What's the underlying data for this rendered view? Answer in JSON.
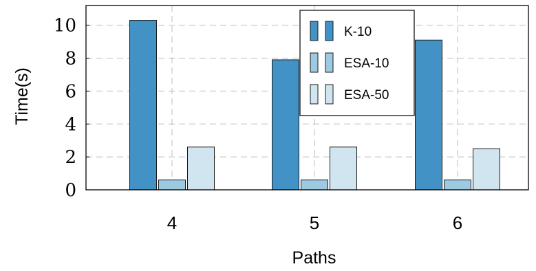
{
  "chart_data": {
    "type": "bar",
    "title": "",
    "xlabel": "Paths",
    "ylabel": "Time(s)",
    "categories": [
      "4",
      "5",
      "6"
    ],
    "ylim": [
      0,
      11.2
    ],
    "yticks": [
      0,
      2,
      4,
      6,
      8,
      10
    ],
    "grid": true,
    "legend_position": "top-right",
    "series": [
      {
        "name": "K-10",
        "values": [
          10.3,
          7.9,
          9.1
        ],
        "color": "#4292c6"
      },
      {
        "name": "ESA-10",
        "values": [
          0.6,
          0.6,
          0.6
        ],
        "color": "#9ecae1"
      },
      {
        "name": "ESA-50",
        "values": [
          2.6,
          2.6,
          2.5
        ],
        "color": "#d1e5f0"
      }
    ]
  }
}
